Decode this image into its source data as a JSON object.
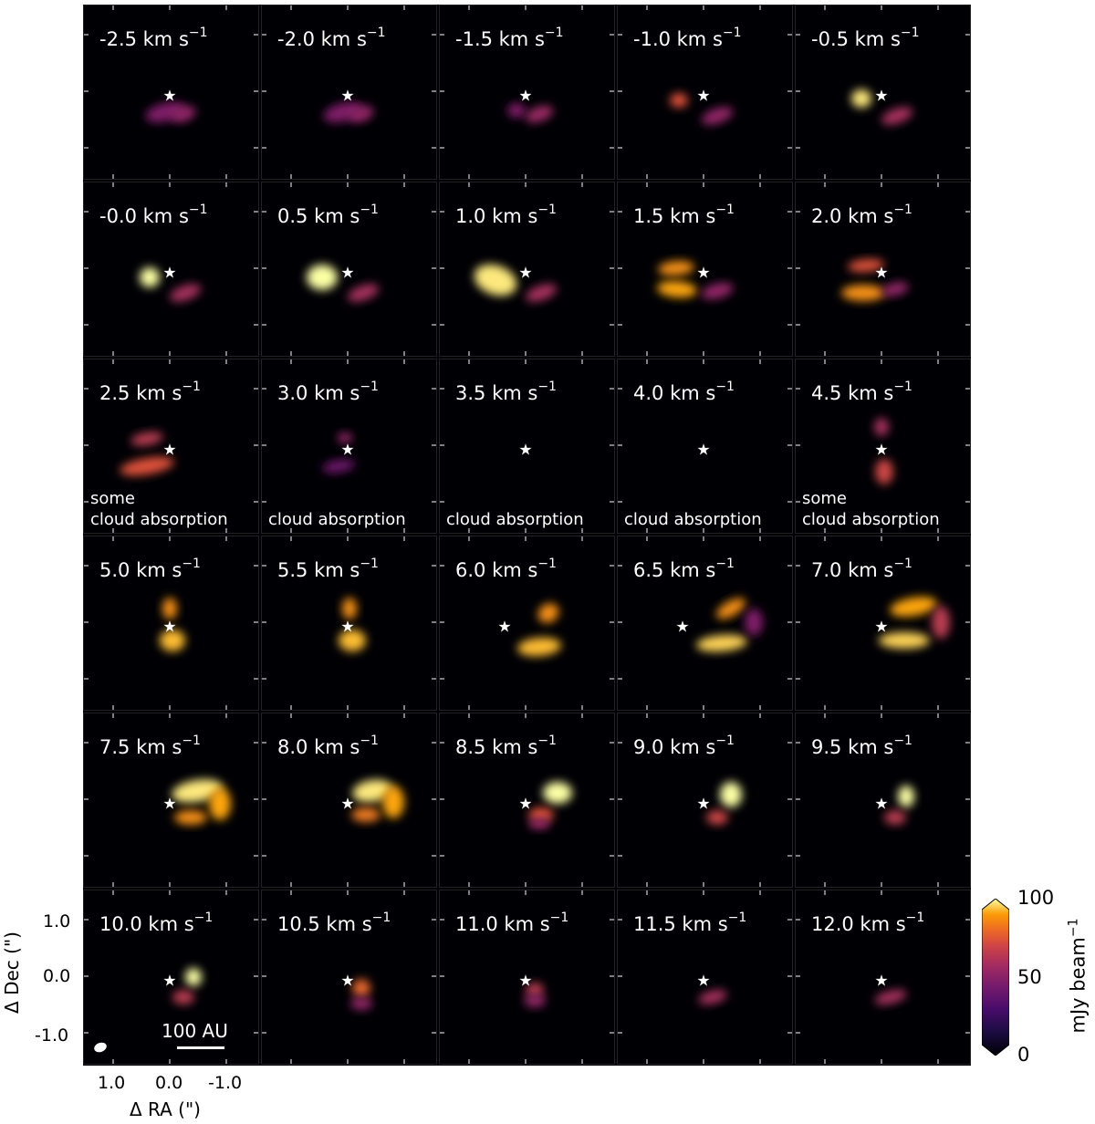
{
  "panels": [
    {
      "velocity": "-2.5 km s",
      "unit_exp": "−1",
      "note": ""
    },
    {
      "velocity": "-2.0 km s",
      "unit_exp": "−1",
      "note": ""
    },
    {
      "velocity": "-1.5 km s",
      "unit_exp": "−1",
      "note": ""
    },
    {
      "velocity": "-1.0 km s",
      "unit_exp": "−1",
      "note": ""
    },
    {
      "velocity": "-0.5 km s",
      "unit_exp": "−1",
      "note": ""
    },
    {
      "velocity": "-0.0 km s",
      "unit_exp": "−1",
      "note": ""
    },
    {
      "velocity": "0.5 km s",
      "unit_exp": "−1",
      "note": ""
    },
    {
      "velocity": "1.0 km s",
      "unit_exp": "−1",
      "note": ""
    },
    {
      "velocity": "1.5 km s",
      "unit_exp": "−1",
      "note": ""
    },
    {
      "velocity": "2.0 km s",
      "unit_exp": "−1",
      "note": ""
    },
    {
      "velocity": "2.5 km s",
      "unit_exp": "−1",
      "note": "some\ncloud absorption"
    },
    {
      "velocity": "3.0 km s",
      "unit_exp": "−1",
      "note": "cloud absorption"
    },
    {
      "velocity": "3.5 km s",
      "unit_exp": "−1",
      "note": "cloud absorption"
    },
    {
      "velocity": "4.0 km s",
      "unit_exp": "−1",
      "note": "cloud absorption"
    },
    {
      "velocity": "4.5 km s",
      "unit_exp": "−1",
      "note": "some\ncloud absorption"
    },
    {
      "velocity": "5.0 km s",
      "unit_exp": "−1",
      "note": ""
    },
    {
      "velocity": "5.5 km s",
      "unit_exp": "−1",
      "note": ""
    },
    {
      "velocity": "6.0 km s",
      "unit_exp": "−1",
      "note": ""
    },
    {
      "velocity": "6.5 km s",
      "unit_exp": "−1",
      "note": ""
    },
    {
      "velocity": "7.0 km s",
      "unit_exp": "−1",
      "note": ""
    },
    {
      "velocity": "7.5 km s",
      "unit_exp": "−1",
      "note": ""
    },
    {
      "velocity": "8.0 km s",
      "unit_exp": "−1",
      "note": ""
    },
    {
      "velocity": "8.5 km s",
      "unit_exp": "−1",
      "note": ""
    },
    {
      "velocity": "9.0 km s",
      "unit_exp": "−1",
      "note": ""
    },
    {
      "velocity": "9.5 km s",
      "unit_exp": "−1",
      "note": ""
    },
    {
      "velocity": "10.0 km s",
      "unit_exp": "−1",
      "note": ""
    },
    {
      "velocity": "10.5 km s",
      "unit_exp": "−1",
      "note": ""
    },
    {
      "velocity": "11.0 km s",
      "unit_exp": "−1",
      "note": ""
    },
    {
      "velocity": "11.5 km s",
      "unit_exp": "−1",
      "note": ""
    },
    {
      "velocity": "12.0 km s",
      "unit_exp": "−1",
      "note": ""
    }
  ],
  "star_glyph": "★",
  "axes": {
    "ylabel": "Δ Dec (\")",
    "xlabel": "Δ RA (\")",
    "yticks": [
      "1.0",
      "0.0",
      "-1.0"
    ],
    "xticks": [
      "1.0",
      "0.0",
      "-1.0"
    ]
  },
  "scalebar": {
    "label": "100 AU"
  },
  "colorbar": {
    "label": "mJy beam",
    "label_exp": "−1",
    "ticks": [
      "100",
      "50",
      "0"
    ],
    "colormap": "inferno",
    "vmin": 0,
    "vmax": 100
  },
  "colors": {
    "background": "#000004",
    "frame": "#ffffff"
  }
}
